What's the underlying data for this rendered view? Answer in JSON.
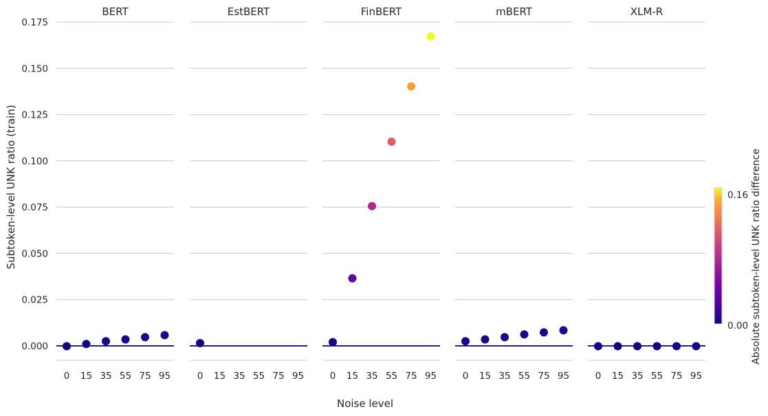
{
  "chart_data": {
    "type": "scatter",
    "xlabel": "Noise level",
    "ylabel": "Subtoken-level UNK ratio (train)",
    "ylim": [
      -0.008,
      0.176
    ],
    "yticks": [
      "0.000",
      "0.025",
      "0.050",
      "0.075",
      "0.100",
      "0.125",
      "0.150",
      "0.175"
    ],
    "ytick_values": [
      0,
      0.025,
      0.05,
      0.075,
      0.1,
      0.125,
      0.15,
      0.175
    ],
    "categories": [
      "0",
      "15",
      "35",
      "55",
      "75",
      "95"
    ],
    "grid": true,
    "colormap": "plasma",
    "colorbar": {
      "label": "Absolute subtoken-level UNK ratio difference",
      "min": 0.0,
      "max": 0.16,
      "min_label": "0.00",
      "max_label": "0.16"
    },
    "panels": [
      {
        "title": "BERT",
        "values": [
          -0.0002,
          0.001,
          0.0025,
          0.0035,
          0.0047,
          0.0058
        ],
        "baseline": 0.0
      },
      {
        "title": "EstBERT",
        "values": [
          0.0015,
          null,
          null,
          null,
          null,
          null
        ],
        "baseline": 0.0
      },
      {
        "title": "FinBERT",
        "values": [
          0.002,
          0.0365,
          0.0755,
          0.1103,
          0.1402,
          0.1672
        ],
        "baseline": 0.0
      },
      {
        "title": "mBERT",
        "values": [
          0.0025,
          0.0035,
          0.0047,
          0.0062,
          0.0073,
          0.0084
        ],
        "baseline": 0.0
      },
      {
        "title": "XLM-R",
        "values": [
          -0.0002,
          -0.0002,
          -0.0002,
          -0.0002,
          -0.0002,
          -0.0002
        ],
        "baseline": 0.0
      }
    ]
  }
}
